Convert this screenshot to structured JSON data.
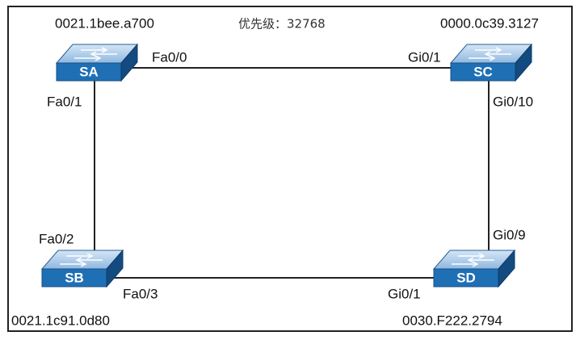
{
  "priority_label": "优先级：32768",
  "nodes": [
    {
      "label": "SA",
      "mac": "0021.1bee.a700"
    },
    {
      "label": "SC",
      "mac": "0000.0c39.3127"
    },
    {
      "label": "SB",
      "mac": "0021.1c91.0d80"
    },
    {
      "label": "SD",
      "mac": "0030.F222.2794"
    }
  ],
  "links": [
    {
      "from_port": "Fa0/0",
      "to_port": "Gi0/1"
    },
    {
      "from_port": "Fa0/1",
      "to_port": "Fa0/2"
    },
    {
      "from_port": "Gi0/10",
      "to_port": "Gi0/9"
    },
    {
      "from_port": "Fa0/3",
      "to_port": "Gi0/1"
    }
  ]
}
